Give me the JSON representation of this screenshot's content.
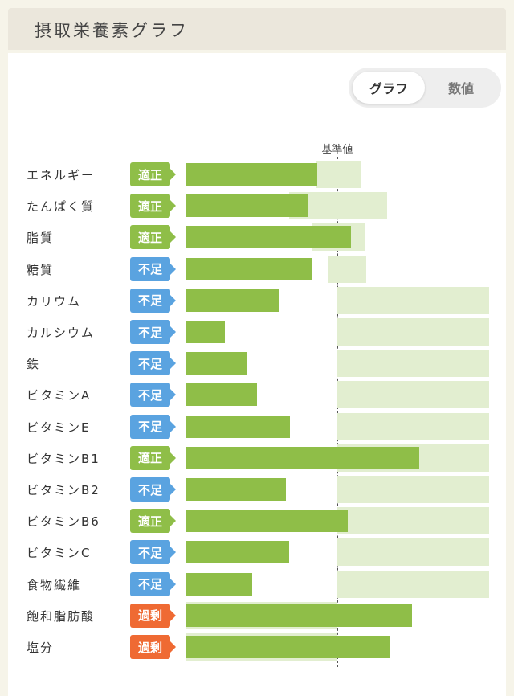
{
  "header": {
    "title": "摂取栄養素グラフ"
  },
  "toggle": {
    "graph_label": "グラフ",
    "value_label": "数値",
    "active": "graph"
  },
  "chart": {
    "ref_label": "基準値",
    "status_colors": {
      "適正": "#8fbe48",
      "不足": "#5aa3e0",
      "過剰": "#ef6a33"
    },
    "rows": [
      {
        "label": "エネルギー",
        "status": "適正",
        "value": 0.87,
        "range": [
          0.86,
          1.16
        ]
      },
      {
        "label": "たんぱく質",
        "status": "適正",
        "value": 0.81,
        "range": [
          0.68,
          1.33
        ]
      },
      {
        "label": "脂質",
        "status": "適正",
        "value": 1.09,
        "range": [
          0.83,
          1.18
        ]
      },
      {
        "label": "糖質",
        "status": "不足",
        "value": 0.83,
        "range": [
          0.94,
          1.19
        ]
      },
      {
        "label": "カリウム",
        "status": "不足",
        "value": 0.62,
        "range": [
          1.0,
          2.0
        ]
      },
      {
        "label": "カルシウム",
        "status": "不足",
        "value": 0.26,
        "range": [
          1.0,
          2.0
        ]
      },
      {
        "label": "鉄",
        "status": "不足",
        "value": 0.41,
        "range": [
          1.0,
          2.0
        ]
      },
      {
        "label": "ビタミンA",
        "status": "不足",
        "value": 0.47,
        "range": [
          1.0,
          2.0
        ]
      },
      {
        "label": "ビタミンE",
        "status": "不足",
        "value": 0.69,
        "range": [
          1.0,
          2.0
        ]
      },
      {
        "label": "ビタミンB1",
        "status": "適正",
        "value": 1.54,
        "range": [
          1.0,
          2.0
        ]
      },
      {
        "label": "ビタミンB2",
        "status": "不足",
        "value": 0.66,
        "range": [
          1.0,
          2.0
        ]
      },
      {
        "label": "ビタミンB6",
        "status": "適正",
        "value": 1.07,
        "range": [
          1.0,
          2.0
        ]
      },
      {
        "label": "ビタミンC",
        "status": "不足",
        "value": 0.68,
        "range": [
          1.0,
          2.0
        ]
      },
      {
        "label": "食物繊維",
        "status": "不足",
        "value": 0.44,
        "range": [
          1.0,
          2.0
        ]
      },
      {
        "label": "飽和脂肪酸",
        "status": "過剰",
        "value": 1.49,
        "range": [
          0.0,
          1.0
        ]
      },
      {
        "label": "塩分",
        "status": "過剰",
        "value": 1.35,
        "range": [
          0.0,
          1.0
        ]
      }
    ]
  }
}
